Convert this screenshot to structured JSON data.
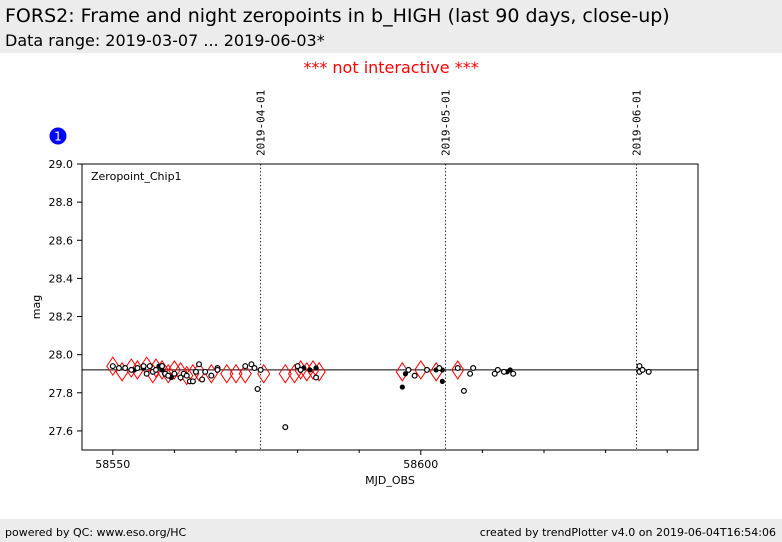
{
  "header": {
    "title": "FORS2: Frame and night zeropoints in b_HIGH (last 90 days, close-up)",
    "subtitle": "Data range: 2019-03-07 ... 2019-06-03*"
  },
  "notice": "*** not interactive ***",
  "badge": "1",
  "footer": {
    "left": "powered by QC: www.eso.org/HC",
    "right": "created by trendPlotter v4.0 on 2019-06-04T16:54:06"
  },
  "colors": {
    "frame_marker": "#000000",
    "night_marker": "#ff0000",
    "notice": "#ff0000",
    "badge": "#0000ff",
    "header_bg": "#ececec"
  },
  "chart_data": {
    "type": "scatter",
    "panel_label": "Zeropoint_Chip1",
    "xlabel": "MJD_OBS",
    "ylabel": "mag",
    "xlim": [
      58545,
      58645
    ],
    "ylim": [
      27.5,
      29.0
    ],
    "x_ticks": [
      58550,
      58600
    ],
    "y_ticks": [
      27.6,
      27.8,
      28.0,
      28.2,
      28.4,
      28.6,
      28.8,
      29.0
    ],
    "reference_line": 27.92,
    "date_markers": [
      {
        "x": 58574.0,
        "label": "2019-04-01"
      },
      {
        "x": 58604.0,
        "label": "2019-05-01"
      },
      {
        "x": 58635.0,
        "label": "2019-06-01"
      }
    ],
    "frame_open": [
      [
        58550.0,
        27.94
      ],
      [
        58551.0,
        27.93
      ],
      [
        58552.0,
        27.93
      ],
      [
        58553.0,
        27.92
      ],
      [
        58554.0,
        27.93
      ],
      [
        58555.0,
        27.94
      ],
      [
        58555.5,
        27.9
      ],
      [
        58556.0,
        27.94
      ],
      [
        58556.5,
        27.91
      ],
      [
        58557.0,
        27.92
      ],
      [
        58558.0,
        27.94
      ],
      [
        58558.5,
        27.9
      ],
      [
        58559.0,
        27.89
      ],
      [
        58560.0,
        27.9
      ],
      [
        58561.0,
        27.88
      ],
      [
        58561.5,
        27.9
      ],
      [
        58562.0,
        27.89
      ],
      [
        58562.5,
        27.86
      ],
      [
        58563.0,
        27.86
      ],
      [
        58563.5,
        27.91
      ],
      [
        58564.0,
        27.95
      ],
      [
        58564.5,
        27.87
      ],
      [
        58565.0,
        27.91
      ],
      [
        58566.0,
        27.89
      ],
      [
        58567.0,
        27.93
      ],
      [
        58567.0,
        27.92
      ],
      [
        58571.5,
        27.94
      ],
      [
        58572.5,
        27.95
      ],
      [
        58573.0,
        27.93
      ],
      [
        58573.5,
        27.82
      ],
      [
        58574.0,
        27.92
      ],
      [
        58578.0,
        27.62
      ],
      [
        58580.0,
        27.94
      ],
      [
        58580.5,
        27.92
      ],
      [
        58583.0,
        27.88
      ],
      [
        58598.0,
        27.92
      ],
      [
        58599.0,
        27.89
      ],
      [
        58601.0,
        27.92
      ],
      [
        58603.0,
        27.93
      ],
      [
        58606.0,
        27.93
      ],
      [
        58607.0,
        27.81
      ],
      [
        58608.0,
        27.9
      ],
      [
        58608.5,
        27.93
      ],
      [
        58612.0,
        27.9
      ],
      [
        58612.5,
        27.92
      ],
      [
        58613.5,
        27.91
      ],
      [
        58615.0,
        27.9
      ],
      [
        58635.5,
        27.94
      ],
      [
        58635.5,
        27.91
      ],
      [
        58636.0,
        27.92
      ],
      [
        58637.0,
        27.91
      ]
    ],
    "frame_filled": [
      [
        58553.5,
        27.92
      ],
      [
        58555.0,
        27.93
      ],
      [
        58557.5,
        27.94
      ],
      [
        58558.0,
        27.92
      ],
      [
        58559.5,
        27.88
      ],
      [
        58580.5,
        27.92
      ],
      [
        58581.0,
        27.93
      ],
      [
        58582.0,
        27.92
      ],
      [
        58583.0,
        27.93
      ],
      [
        58597.0,
        27.83
      ],
      [
        58597.5,
        27.9
      ],
      [
        58602.5,
        27.92
      ],
      [
        58603.5,
        27.86
      ],
      [
        58603.5,
        27.92
      ],
      [
        58614.0,
        27.91
      ],
      [
        58614.5,
        27.92
      ]
    ],
    "night": [
      [
        58550.0,
        27.94
      ],
      [
        58551.5,
        27.91
      ],
      [
        58553.0,
        27.93
      ],
      [
        58554.0,
        27.92
      ],
      [
        58555.5,
        27.94
      ],
      [
        58556.5,
        27.9
      ],
      [
        58557.0,
        27.93
      ],
      [
        58558.0,
        27.92
      ],
      [
        58559.0,
        27.9
      ],
      [
        58560.0,
        27.92
      ],
      [
        58561.0,
        27.91
      ],
      [
        58562.0,
        27.89
      ],
      [
        58563.0,
        27.9
      ],
      [
        58564.0,
        27.91
      ],
      [
        58566.0,
        27.9
      ],
      [
        58568.5,
        27.9
      ],
      [
        58570.0,
        27.9
      ],
      [
        58571.5,
        27.9
      ],
      [
        58574.5,
        27.9
      ],
      [
        58578.0,
        27.9
      ],
      [
        58579.5,
        27.9
      ],
      [
        58580.5,
        27.92
      ],
      [
        58581.5,
        27.91
      ],
      [
        58582.5,
        27.92
      ],
      [
        58583.5,
        27.91
      ],
      [
        58597.0,
        27.91
      ],
      [
        58600.0,
        27.92
      ],
      [
        58602.5,
        27.91
      ],
      [
        58606.0,
        27.92
      ]
    ]
  }
}
